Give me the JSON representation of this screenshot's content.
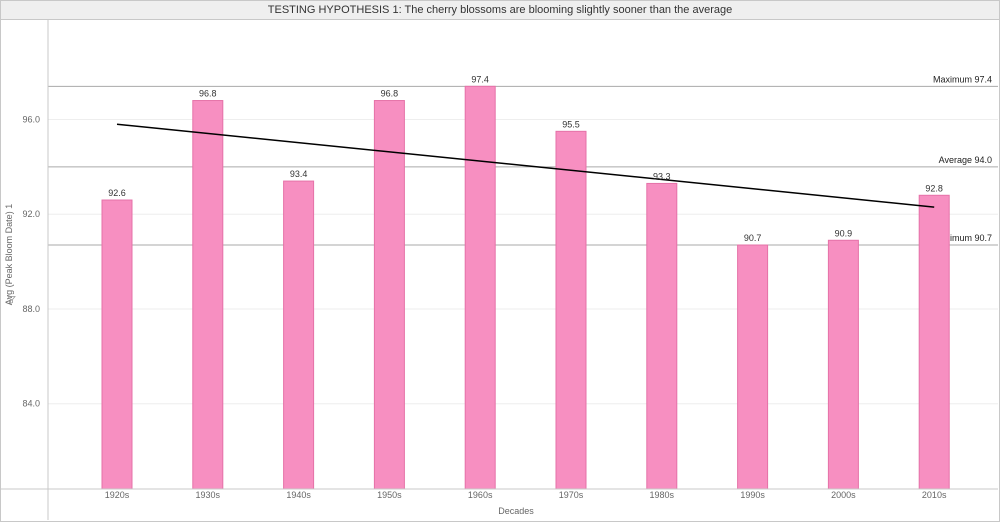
{
  "title": "TESTING HYPOTHESIS 1: The cherry blossoms are blooming slightly sooner than the average",
  "colors": {
    "bar": "#f78fc1",
    "bar_edge": "#e572a8",
    "trend": "#000000",
    "ref_line": "#aaaaaa",
    "grid": "#eeeeee"
  },
  "chart_data": {
    "type": "bar",
    "title": "TESTING HYPOTHESIS 1: The cherry blossoms are blooming slightly sooner than the average",
    "xlabel": "Decades",
    "ylabel": "Avg (Peak Bloom Date) 1",
    "ylabel_icon": "filter-icon",
    "categories": [
      "1920s",
      "1930s",
      "1940s",
      "1950s",
      "1960s",
      "1970s",
      "1980s",
      "1990s",
      "2000s",
      "2010s"
    ],
    "values": [
      92.6,
      96.8,
      93.4,
      96.8,
      97.4,
      95.5,
      93.3,
      90.7,
      90.9,
      92.8
    ],
    "data_labels": [
      "92.6",
      "96.8",
      "93.4",
      "96.8",
      "97.4",
      "95.5",
      "93.3",
      "90.7",
      "90.9",
      "92.8"
    ],
    "ylim": [
      80.4,
      100.2
    ],
    "yticks": [
      84.0,
      88.0,
      92.0,
      96.0
    ],
    "ytick_labels": [
      "84.0",
      "88.0",
      "92.0",
      "96.0"
    ],
    "reference_lines": [
      {
        "label": "Maximum 97.4",
        "value": 97.4
      },
      {
        "label": "Average 94.0",
        "value": 94.0
      },
      {
        "label": "Minimum 90.7",
        "value": 90.7
      }
    ],
    "trend_line": {
      "start": 95.8,
      "end": 92.3
    },
    "grid": true,
    "legend": "none"
  }
}
